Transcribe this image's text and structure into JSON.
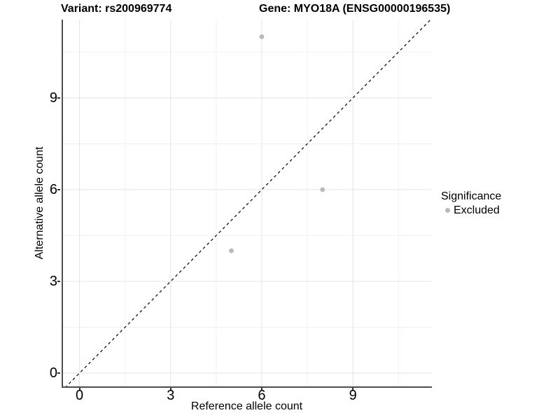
{
  "header": {
    "variant_title": "Variant: rs200969774",
    "gene_title": "Gene: MYO18A (ENSG00000196535)"
  },
  "legend": {
    "title": "Significance",
    "items": [
      {
        "label": "Excluded",
        "color": "#b9b9b9"
      }
    ]
  },
  "colors": {
    "point": "#b9b9b9",
    "axis_line": "#4d4d4d",
    "tick": "#333333",
    "grid_major": "#e4e4e4",
    "grid_minor": "#f1f1f1",
    "dashed_line": "#000000",
    "text": "#000000"
  },
  "chart_data": {
    "type": "scatter",
    "title": "Variant: rs200969774   Gene: MYO18A (ENSG00000196535)",
    "xlabel": "Reference allele count",
    "ylabel": "Alternative allele count",
    "xlim": [
      -0.59,
      11.6
    ],
    "ylim": [
      -0.48,
      11.56
    ],
    "xticks": [
      0,
      3,
      6,
      9
    ],
    "yticks": [
      0,
      3,
      6,
      9
    ],
    "minor_xticks": [
      1.5,
      4.5,
      7.5,
      10.5
    ],
    "minor_yticks": [
      1.5,
      4.5,
      7.5,
      10.5
    ],
    "grid": true,
    "legend_position": "right-center",
    "series": [
      {
        "name": "Excluded",
        "color": "#b9b9b9",
        "points": [
          [
            5,
            4
          ],
          [
            6,
            11
          ],
          [
            8,
            6
          ]
        ]
      }
    ],
    "reference_line": {
      "slope": 1,
      "intercept": 0,
      "style": "dashed",
      "color": "#000000"
    }
  }
}
